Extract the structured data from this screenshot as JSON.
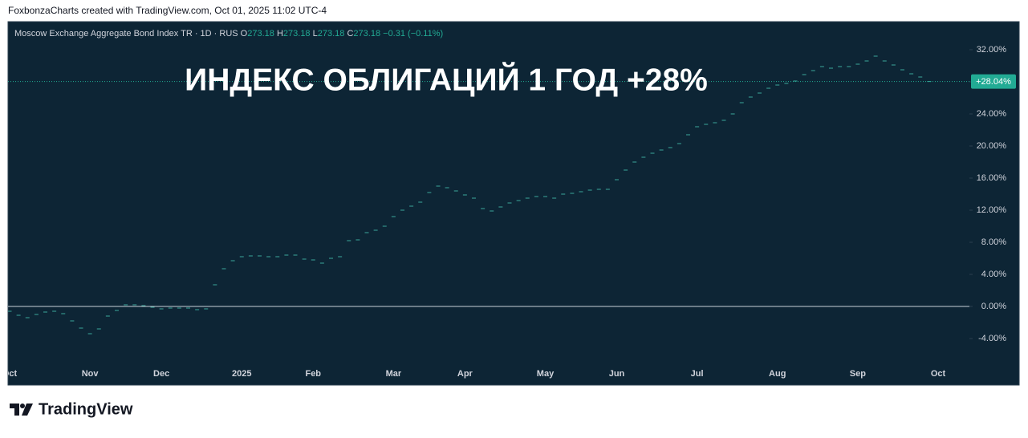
{
  "header": {
    "attribution": "FoxbonzaCharts created with TradingView.com, Oct 01, 2025 11:02 UTC-4",
    "brand": "TradingView"
  },
  "chart_data": {
    "type": "line",
    "title": "ИНДЕКС ОБЛИГАЦИЙ 1 ГОД +28%",
    "legend_name": "Moscow Exchange Aggregate Bond Index TR · 1D · RUS",
    "ohlc": [
      {
        "key": "O",
        "value": "273.18"
      },
      {
        "key": "H",
        "value": "273.18"
      },
      {
        "key": "L",
        "value": "273.18"
      },
      {
        "key": "C",
        "value": "273.18"
      }
    ],
    "change": "−0.31 (−0.11%)",
    "categories": [
      "Oct",
      null,
      null,
      null,
      null,
      null,
      null,
      null,
      null,
      "Nov",
      null,
      null,
      null,
      null,
      null,
      null,
      null,
      "Dec",
      null,
      null,
      null,
      null,
      null,
      null,
      null,
      null,
      "2025",
      null,
      null,
      null,
      null,
      null,
      null,
      null,
      "Feb",
      null,
      null,
      null,
      null,
      null,
      null,
      null,
      null,
      "Mar",
      null,
      null,
      null,
      null,
      null,
      null,
      null,
      "Apr",
      null,
      null,
      null,
      null,
      null,
      null,
      null,
      null,
      "May",
      null,
      null,
      null,
      null,
      null,
      null,
      null,
      "Jun",
      null,
      null,
      null,
      null,
      null,
      null,
      null,
      null,
      "Jul",
      null,
      null,
      null,
      null,
      null,
      null,
      null,
      null,
      "Aug",
      null,
      null,
      null,
      null,
      null,
      null,
      null,
      null,
      "Sep",
      null,
      null,
      null,
      null,
      null,
      null,
      null,
      null,
      "Oct"
    ],
    "series": [
      {
        "name": "Moscow Exchange Aggregate Bond Index TR",
        "color": "#3aa79b",
        "values": [
          -0.6,
          -1.1,
          -1.4,
          -1.0,
          -0.7,
          -0.6,
          -0.9,
          -1.8,
          -2.7,
          -3.4,
          -2.8,
          -1.2,
          -0.5,
          0.2,
          0.2,
          0.1,
          -0.1,
          -0.3,
          -0.2,
          -0.2,
          -0.2,
          -0.4,
          -0.3,
          2.7,
          4.7,
          5.7,
          6.2,
          6.3,
          6.3,
          6.2,
          6.2,
          6.4,
          6.4,
          5.9,
          5.8,
          5.4,
          6.0,
          6.2,
          8.2,
          8.3,
          9.2,
          9.5,
          10.0,
          11.2,
          12.0,
          12.5,
          13.0,
          14.2,
          15.0,
          14.8,
          14.4,
          13.9,
          13.5,
          12.2,
          11.9,
          12.4,
          12.9,
          13.2,
          13.5,
          13.7,
          13.7,
          13.5,
          14.0,
          14.1,
          14.3,
          14.5,
          14.6,
          14.6,
          15.8,
          17.0,
          18.0,
          18.6,
          19.1,
          19.5,
          19.8,
          20.3,
          21.4,
          22.4,
          22.7,
          22.9,
          23.2,
          24.0,
          25.4,
          26.1,
          26.6,
          27.2,
          27.6,
          27.8,
          28.1,
          28.9,
          29.4,
          29.9,
          29.7,
          29.9,
          29.9,
          30.2,
          30.6,
          31.2,
          30.6,
          30.1,
          29.5,
          29.0,
          28.6,
          28.04,
          null
        ]
      }
    ],
    "last_value": {
      "value": 28.04,
      "label": "+28.04%"
    },
    "last_color": "#22ab94",
    "ylim": [
      -7.3,
      35.2
    ],
    "yticks": [
      {
        "value": -4,
        "label": "-4.00%"
      },
      {
        "value": 0,
        "label": "0.00%"
      },
      {
        "value": 4,
        "label": "4.00%"
      },
      {
        "value": 8,
        "label": "8.00%"
      },
      {
        "value": 12,
        "label": "12.00%"
      },
      {
        "value": 16,
        "label": "16.00%"
      },
      {
        "value": 20,
        "label": "20.00%"
      },
      {
        "value": 24,
        "label": "24.00%"
      },
      {
        "value": 28,
        "label": "28.00%"
      },
      {
        "value": 32,
        "label": "32.00%"
      }
    ],
    "zero_line": 0
  }
}
